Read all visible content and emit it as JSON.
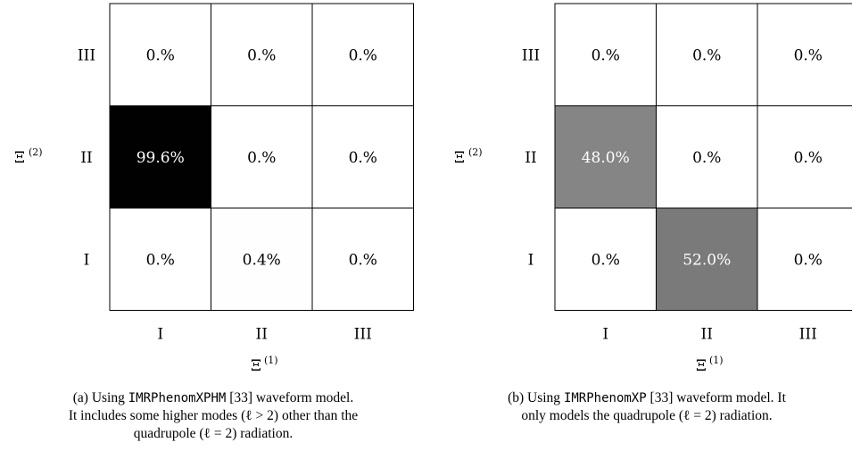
{
  "chart_data": [
    {
      "type": "heatmap",
      "panel": "(a)",
      "x_categories": [
        "I",
        "II",
        "III"
      ],
      "y_categories": [
        "I",
        "II",
        "III"
      ],
      "xlabel": "Ξ",
      "xlabel_sup": "(1)",
      "ylabel": "Ξ",
      "ylabel_sup": "(2)",
      "cells": [
        {
          "x": "I",
          "y": "III",
          "value": 0.0,
          "label": "0.%"
        },
        {
          "x": "II",
          "y": "III",
          "value": 0.0,
          "label": "0.%"
        },
        {
          "x": "III",
          "y": "III",
          "value": 0.0,
          "label": "0.%"
        },
        {
          "x": "I",
          "y": "II",
          "value": 99.6,
          "label": "99.6%"
        },
        {
          "x": "II",
          "y": "II",
          "value": 0.0,
          "label": "0.%"
        },
        {
          "x": "III",
          "y": "II",
          "value": 0.0,
          "label": "0.%"
        },
        {
          "x": "I",
          "y": "I",
          "value": 0.0,
          "label": "0.%"
        },
        {
          "x": "II",
          "y": "I",
          "value": 0.4,
          "label": "0.4%"
        },
        {
          "x": "III",
          "y": "I",
          "value": 0.0,
          "label": "0.%"
        }
      ],
      "caption": {
        "prefix": "(a) Using ",
        "code": "IMRPhenomXPHM",
        "rest_line1": " [33] waveform model.",
        "line2": "It includes some higher modes (ℓ > 2) other than the",
        "line3": "quadrupole (ℓ = 2) radiation."
      }
    },
    {
      "type": "heatmap",
      "panel": "(b)",
      "x_categories": [
        "I",
        "II",
        "III"
      ],
      "y_categories": [
        "I",
        "II",
        "III"
      ],
      "xlabel": "Ξ",
      "xlabel_sup": "(1)",
      "ylabel": "Ξ",
      "ylabel_sup": "(2)",
      "cells": [
        {
          "x": "I",
          "y": "III",
          "value": 0.0,
          "label": "0.%"
        },
        {
          "x": "II",
          "y": "III",
          "value": 0.0,
          "label": "0.%"
        },
        {
          "x": "III",
          "y": "III",
          "value": 0.0,
          "label": "0.%"
        },
        {
          "x": "I",
          "y": "II",
          "value": 48.0,
          "label": "48.0%"
        },
        {
          "x": "II",
          "y": "II",
          "value": 0.0,
          "label": "0.%"
        },
        {
          "x": "III",
          "y": "II",
          "value": 0.0,
          "label": "0.%"
        },
        {
          "x": "I",
          "y": "I",
          "value": 0.0,
          "label": "0.%"
        },
        {
          "x": "II",
          "y": "I",
          "value": 52.0,
          "label": "52.0%"
        },
        {
          "x": "III",
          "y": "I",
          "value": 0.0,
          "label": "0.%"
        }
      ],
      "caption": {
        "prefix": "(b) Using ",
        "code": "IMRPhenomXP",
        "rest_line1": " [33] waveform model. It",
        "line2": "only models the quadrupole (ℓ = 2) radiation.",
        "line3": ""
      }
    }
  ]
}
